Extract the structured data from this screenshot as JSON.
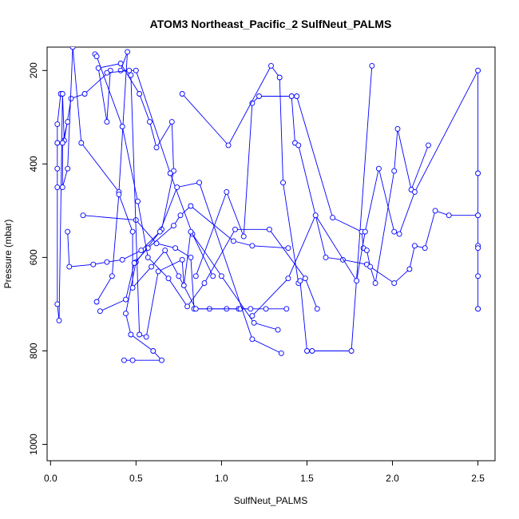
{
  "chart_data": {
    "type": "line",
    "title": "ATOM3 Northeast_Pacific_2 SulfNeut_PALMS",
    "xlabel": "SulfNeut_PALMS",
    "ylabel": "Pressure (mbar)",
    "xlim": [
      -0.02,
      2.6
    ],
    "ylim": [
      1035,
      150
    ],
    "y_reversed": true,
    "grid": false,
    "legend": "none",
    "x_ticks": [
      0.0,
      0.5,
      1.0,
      1.5,
      2.0,
      2.5
    ],
    "x_tick_labels": [
      "0.0",
      "0.5",
      "1.0",
      "1.5",
      "2.0",
      "2.5"
    ],
    "y_ticks": [
      200,
      400,
      600,
      800,
      1000
    ],
    "y_tick_labels": [
      "200",
      "400",
      "600",
      "800",
      "1000"
    ],
    "series_color": "#0000ff",
    "series": [
      {
        "x": [
          0.06,
          0.04,
          0.04,
          0.04,
          0.04,
          0.04,
          0.05,
          0.07,
          0.08,
          0.12,
          0.2,
          0.35,
          0.33,
          0.28,
          0.41,
          0.52,
          0.58,
          0.62,
          0.71,
          0.72,
          0.65,
          0.5,
          0.44,
          0.47,
          0.6,
          0.65,
          0.48,
          0.43
        ],
        "y": [
          250,
          315,
          355,
          410,
          450,
          700,
          735,
          250,
          350,
          260,
          250,
          200,
          310,
          195,
          185,
          250,
          310,
          365,
          310,
          415,
          540,
          610,
          720,
          765,
          800,
          820,
          820,
          820
        ]
      },
      {
        "x": [
          0.1,
          0.07,
          0.07,
          0.1,
          0.13,
          0.18,
          0.4,
          0.45,
          0.41,
          0.5,
          0.7,
          0.83,
          0.95
        ],
        "y": [
          310,
          355,
          450,
          410,
          150,
          355,
          460,
          160,
          200,
          200,
          420,
          550,
          640
        ]
      },
      {
        "x": [
          0.19,
          0.5,
          0.62,
          0.73,
          0.82,
          0.84,
          0.93,
          1.03,
          1.1,
          1.26,
          1.38
        ],
        "y": [
          510,
          520,
          570,
          580,
          600,
          710,
          710,
          710,
          710,
          710,
          710
        ]
      },
      {
        "x": [
          0.27,
          0.36,
          0.4,
          0.48,
          0.48,
          0.59,
          0.67,
          0.75,
          0.85,
          1.11,
          1.17
        ],
        "y": [
          695,
          640,
          465,
          545,
          665,
          620,
          585,
          640,
          710,
          710,
          710
        ]
      },
      {
        "x": [
          0.29,
          0.44,
          0.49,
          0.57,
          0.72,
          0.76,
          0.82,
          1.07,
          1.18,
          1.39
        ],
        "y": [
          715,
          690,
          612,
          580,
          532,
          510,
          490,
          565,
          575,
          580
        ]
      },
      {
        "x": [
          0.33,
          0.46,
          0.47,
          0.52,
          0.56,
          0.63,
          0.77,
          0.78,
          0.82,
          1.0,
          1.19,
          1.33
        ],
        "y": [
          205,
          200,
          210,
          765,
          770,
          630,
          605,
          660,
          545,
          640,
          740,
          755
        ]
      },
      {
        "x": [
          0.1,
          0.11,
          0.25,
          0.33,
          0.42,
          0.53,
          0.64,
          0.74,
          0.87,
          1.18,
          1.35
        ],
        "y": [
          545,
          620,
          615,
          610,
          605,
          585,
          545,
          450,
          440,
          775,
          805
        ]
      },
      {
        "x": [
          0.26,
          0.27,
          0.42,
          0.51,
          0.57,
          0.69,
          0.8,
          0.9,
          1.08,
          1.28,
          1.49,
          1.56
        ],
        "y": [
          165,
          170,
          320,
          480,
          600,
          645,
          705,
          655,
          540,
          540,
          645,
          710
        ]
      },
      {
        "x": [
          0.85,
          1.03,
          1.13,
          1.18,
          1.22,
          1.41,
          1.43,
          1.45,
          1.61,
          1.71,
          1.85,
          2.01,
          2.1,
          2.13,
          2.19,
          2.25,
          2.33,
          2.5
        ],
        "y": [
          640,
          460,
          555,
          270,
          255,
          255,
          355,
          360,
          600,
          605,
          615,
          655,
          625,
          575,
          580,
          500,
          510,
          510
        ]
      },
      {
        "x": [
          0.77,
          1.04,
          1.29,
          1.34,
          1.36,
          1.45,
          1.46,
          1.5,
          1.53,
          1.76,
          1.88
        ],
        "y": [
          250,
          360,
          190,
          215,
          440,
          655,
          650,
          800,
          800,
          800,
          190
        ]
      },
      {
        "x": [
          1.44,
          1.65,
          1.82,
          1.83,
          1.85,
          1.87,
          1.9,
          2.01,
          2.03,
          2.11,
          2.21
        ],
        "y": [
          255,
          515,
          545,
          580,
          585,
          620,
          655,
          415,
          325,
          455,
          360
        ]
      },
      {
        "x": [
          1.18,
          1.39,
          1.55,
          1.79,
          1.84,
          1.92,
          2.01,
          2.04,
          2.13,
          2.5,
          2.5,
          2.5,
          2.5,
          2.5,
          2.5,
          2.5,
          2.5
        ],
        "y": [
          725,
          645,
          510,
          650,
          545,
          410,
          545,
          550,
          460,
          200,
          420,
          510,
          575,
          580,
          640,
          710,
          710
        ]
      }
    ]
  }
}
